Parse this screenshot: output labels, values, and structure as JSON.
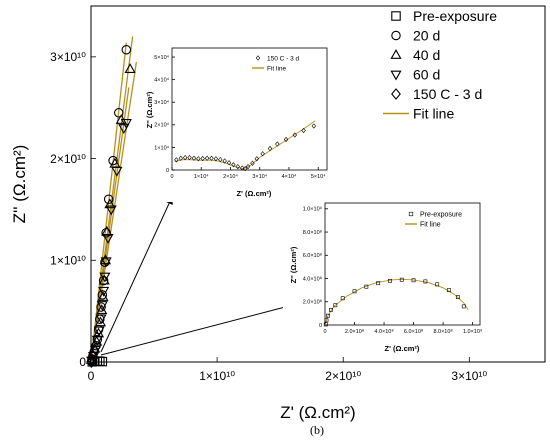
{
  "caption": "(b)",
  "fit_color": "#b5901c",
  "chart_data": [
    {
      "id": "main",
      "type": "scatter",
      "xlabel": "Z' (Ω.cm²)",
      "ylabel": "Z'' (Ω.cm²)",
      "xlim": [
        0,
        36000000000.0
      ],
      "ylim": [
        0,
        35000000000.0
      ],
      "xticks": [
        {
          "v": 0,
          "t": "0"
        },
        {
          "v": 10000000000.0,
          "t": "1×10¹⁰"
        },
        {
          "v": 20000000000.0,
          "t": "2×10¹⁰"
        },
        {
          "v": 30000000000.0,
          "t": "3×10¹⁰"
        }
      ],
      "yticks": [
        {
          "v": 0,
          "t": "0"
        },
        {
          "v": 10000000000.0,
          "t": "1×10¹⁰"
        },
        {
          "v": 20000000000.0,
          "t": "2×10¹⁰"
        },
        {
          "v": 30000000000.0,
          "t": "3×10¹⁰"
        }
      ],
      "legend_position": "top-right",
      "legend": [
        {
          "marker": "square",
          "label": "Pre-exposure"
        },
        {
          "marker": "circle",
          "label": "20 d"
        },
        {
          "marker": "triangle-up",
          "label": "40 d"
        },
        {
          "marker": "triangle-down",
          "label": "60 d"
        },
        {
          "marker": "diamond",
          "label": "150 C - 3 d"
        },
        {
          "marker": "line",
          "label": "Fit line"
        }
      ],
      "series": [
        {
          "name": "20 d",
          "marker": "circle",
          "points": [
            [
              50000000.0,
              100000000.0
            ],
            [
              100000000.0,
              300000000.0
            ],
            [
              150000000.0,
              600000000.0
            ],
            [
              250000000.0,
              1000000000.0
            ],
            [
              400000000.0,
              1600000000.0
            ],
            [
              500000000.0,
              2200000000.0
            ],
            [
              600000000.0,
              3200000000.0
            ],
            [
              700000000.0,
              4200000000.0
            ],
            [
              800000000.0,
              5400000000.0
            ],
            [
              900000000.0,
              6600000000.0
            ],
            [
              1000000000.0,
              8000000000.0
            ],
            [
              1100000000.0,
              9800000000.0
            ],
            [
              1200000000.0,
              12700000000.0
            ],
            [
              1400000000.0,
              16000000000.0
            ],
            [
              1750000000.0,
              19800000000.0
            ],
            [
              2200000000.0,
              24500000000.0
            ],
            [
              2800000000.0,
              30700000000.0
            ]
          ]
        },
        {
          "name": "40 d",
          "marker": "triangle-up",
          "points": [
            [
              50000000.0,
              200000000.0
            ],
            [
              150000000.0,
              700000000.0
            ],
            [
              300000000.0,
              1300000000.0
            ],
            [
              450000000.0,
              2000000000.0
            ],
            [
              600000000.0,
              2800000000.0
            ],
            [
              750000000.0,
              3900000000.0
            ],
            [
              850000000.0,
              5100000000.0
            ],
            [
              950000000.0,
              6400000000.0
            ],
            [
              1050000000.0,
              8000000000.0
            ],
            [
              1150000000.0,
              10000000000.0
            ],
            [
              1250000000.0,
              12800000000.0
            ],
            [
              1500000000.0,
              15500000000.0
            ],
            [
              1900000000.0,
              19500000000.0
            ],
            [
              2400000000.0,
              23800000000.0
            ],
            [
              3100000000.0,
              28800000000.0
            ]
          ]
        },
        {
          "name": "60 d",
          "marker": "triangle-down",
          "points": [
            [
              50000000.0,
              150000000.0
            ],
            [
              200000000.0,
              600000000.0
            ],
            [
              350000000.0,
              1200000000.0
            ],
            [
              500000000.0,
              2200000000.0
            ],
            [
              650000000.0,
              3100000000.0
            ],
            [
              800000000.0,
              4300000000.0
            ],
            [
              900000000.0,
              5600000000.0
            ],
            [
              1000000000.0,
              7000000000.0
            ],
            [
              1100000000.0,
              8400000000.0
            ],
            [
              1200000000.0,
              9900000000.0
            ],
            [
              1350000000.0,
              12200000000.0
            ],
            [
              1600000000.0,
              15000000000.0
            ],
            [
              2050000000.0,
              18800000000.0
            ],
            [
              2600000000.0,
              23000000000.0
            ],
            [
              2800000000.0,
              23500000000.0
            ]
          ]
        },
        {
          "name": "Pre-exposure",
          "marker": "square",
          "points": [
            [
              100000000.0,
              20000000.0
            ],
            [
              300000000.0,
              60000000.0
            ],
            [
              500000000.0,
              90000000.0
            ],
            [
              700000000.0,
              80000000.0
            ],
            [
              900000000.0,
              40000000.0
            ]
          ]
        },
        {
          "name": "150 C - 3 d",
          "marker": "diamond",
          "points": [
            [
              10000000.0,
              5000000.0
            ],
            [
              30000000.0,
              10000000.0
            ],
            [
              50000000.0,
              15000000.0
            ]
          ]
        }
      ],
      "fit_lines": [
        [
          [
            0,
            0
          ],
          [
            3300000000.0,
            32000000000.0
          ]
        ],
        [
          [
            0,
            0
          ],
          [
            2800000000.0,
            31400000000.0
          ]
        ],
        [
          [
            0,
            0
          ],
          [
            3000000000.0,
            27000000000.0
          ]
        ],
        [
          [
            0,
            0
          ],
          [
            3600000000.0,
            29500000000.0
          ]
        ]
      ]
    },
    {
      "id": "inset_top",
      "type": "scatter",
      "xlabel": "Z' (Ω.cm²)",
      "ylabel": "Z'' (Ω.cm²)",
      "xlim": [
        0,
        53000.0
      ],
      "ylim": [
        0,
        54000.0
      ],
      "xticks": [
        {
          "v": 0,
          "t": "0"
        },
        {
          "v": 10000.0,
          "t": "1×10⁴"
        },
        {
          "v": 20000.0,
          "t": "2×10⁴"
        },
        {
          "v": 30000.0,
          "t": "3×10⁴"
        },
        {
          "v": 40000.0,
          "t": "4×10⁴"
        },
        {
          "v": 50000.0,
          "t": "5×10⁴"
        }
      ],
      "yticks": [
        {
          "v": 0,
          "t": "0"
        },
        {
          "v": 10000.0,
          "t": "1×10⁴"
        },
        {
          "v": 20000.0,
          "t": "2×10⁴"
        },
        {
          "v": 30000.0,
          "t": "3×10⁴"
        },
        {
          "v": 40000.0,
          "t": "4×10⁴"
        },
        {
          "v": 50000.0,
          "t": "5×10⁴"
        }
      ],
      "legend_position": "top-right",
      "legend": [
        {
          "marker": "diamond-open",
          "label": "150 C - 3 d"
        },
        {
          "marker": "line",
          "label": "Fit line"
        }
      ],
      "series": [
        {
          "name": "150 C - 3 d",
          "marker": "diamond-open",
          "points": [
            [
              1500.0,
              4500.0
            ],
            [
              3000.0,
              5200.0
            ],
            [
              4500.0,
              5500.0
            ],
            [
              6000.0,
              5500.0
            ],
            [
              7500.0,
              5200.0
            ],
            [
              9000.0,
              5000.0
            ],
            [
              10500.0,
              5100.0
            ],
            [
              12000.0,
              5200.0
            ],
            [
              13500.0,
              5200.0
            ],
            [
              15000.0,
              5000.0
            ],
            [
              16500.0,
              4600.0
            ],
            [
              18000.0,
              4000.0
            ],
            [
              19500.0,
              3200.0
            ],
            [
              21000.0,
              2300.0
            ],
            [
              22500.0,
              1500.0
            ],
            [
              24000.0,
              900.0
            ],
            [
              25000.0,
              600.0
            ],
            [
              26000.0,
              1500.0
            ],
            [
              27500.0,
              3000.0
            ],
            [
              29000.0,
              5000.0
            ],
            [
              31000.0,
              7200.0
            ],
            [
              33500.0,
              9500.0
            ],
            [
              36000.0,
              11500.0
            ],
            [
              39000.0,
              13500.0
            ],
            [
              42000.0,
              15500.0
            ],
            [
              45000.0,
              17500.0
            ],
            [
              48500.0,
              19500.0
            ]
          ]
        }
      ],
      "fit_lines": [
        [
          [
            1000.0,
            3800.0
          ],
          [
            4000.0,
            4600.0
          ],
          [
            7000.0,
            4500.0
          ],
          [
            10000.0,
            4300.0
          ],
          [
            13000.0,
            4400.0
          ],
          [
            16000.0,
            3900.0
          ],
          [
            19000.0,
            2800.0
          ],
          [
            22000.0,
            1300.0
          ],
          [
            24500.0,
            500.0
          ],
          [
            27000.0,
            2200.0
          ],
          [
            30000.0,
            5600.0
          ],
          [
            35000.0,
            9800.0
          ],
          [
            40000.0,
            14000.0
          ],
          [
            45000.0,
            18200.0
          ],
          [
            49000.0,
            21800.0
          ]
        ]
      ]
    },
    {
      "id": "inset_bottom",
      "type": "scatter",
      "xlabel": "Z' (Ω.cm²)",
      "ylabel": "Z'' (Ω.cm²)",
      "xlim": [
        0,
        1050000000.0
      ],
      "ylim": [
        0,
        1050000000.0
      ],
      "xticks": [
        {
          "v": 0,
          "t": "0"
        },
        {
          "v": 200000000.0,
          "t": "2.0×10⁸"
        },
        {
          "v": 400000000.0,
          "t": "4.0×10⁸"
        },
        {
          "v": 600000000.0,
          "t": "6.0×10⁸"
        },
        {
          "v": 800000000.0,
          "t": "8.0×10⁸"
        },
        {
          "v": 1000000000.0,
          "t": "1.0×10⁹"
        }
      ],
      "yticks": [
        {
          "v": 0,
          "t": "0"
        },
        {
          "v": 200000000.0,
          "t": "2.0×10⁸"
        },
        {
          "v": 400000000.0,
          "t": "4.0×10⁸"
        },
        {
          "v": 600000000.0,
          "t": "6.0×10⁸"
        },
        {
          "v": 800000000.0,
          "t": "8.0×10⁸"
        },
        {
          "v": 1000000000.0,
          "t": "1.0×10⁹"
        }
      ],
      "legend_position": "top-right",
      "legend": [
        {
          "marker": "square-open",
          "label": "Pre-exposure"
        },
        {
          "marker": "line",
          "label": "Fit line"
        }
      ],
      "series": [
        {
          "name": "Pre-exposure",
          "marker": "square-open",
          "points": [
            [
              5000000.0,
              5000000.0
            ],
            [
              10000000.0,
              40000000.0
            ],
            [
              20000000.0,
              80000000.0
            ],
            [
              40000000.0,
              130000000.0
            ],
            [
              70000000.0,
              170000000.0
            ],
            [
              120000000.0,
              230000000.0
            ],
            [
              200000000.0,
              290000000.0
            ],
            [
              280000000.0,
              330000000.0
            ],
            [
              360000000.0,
              360000000.0
            ],
            [
              440000000.0,
              380000000.0
            ],
            [
              520000000.0,
              390000000.0
            ],
            [
              600000000.0,
              385000000.0
            ],
            [
              680000000.0,
              375000000.0
            ],
            [
              760000000.0,
              350000000.0
            ],
            [
              840000000.0,
              300000000.0
            ],
            [
              900000000.0,
              240000000.0
            ],
            [
              940000000.0,
              160000000.0
            ]
          ]
        }
      ],
      "fit_lines": [
        [
          [
            0,
            0
          ],
          [
            20000000.0,
            80000000.0
          ],
          [
            60000000.0,
            160000000.0
          ],
          [
            150000000.0,
            250000000.0
          ],
          [
            250000000.0,
            320000000.0
          ],
          [
            350000000.0,
            365000000.0
          ],
          [
            450000000.0,
            388000000.0
          ],
          [
            520000000.0,
            393000000.0
          ],
          [
            600000000.0,
            388000000.0
          ],
          [
            700000000.0,
            365000000.0
          ],
          [
            800000000.0,
            320000000.0
          ],
          [
            880000000.0,
            260000000.0
          ],
          [
            940000000.0,
            190000000.0
          ],
          [
            970000000.0,
            130000000.0
          ]
        ]
      ]
    }
  ]
}
